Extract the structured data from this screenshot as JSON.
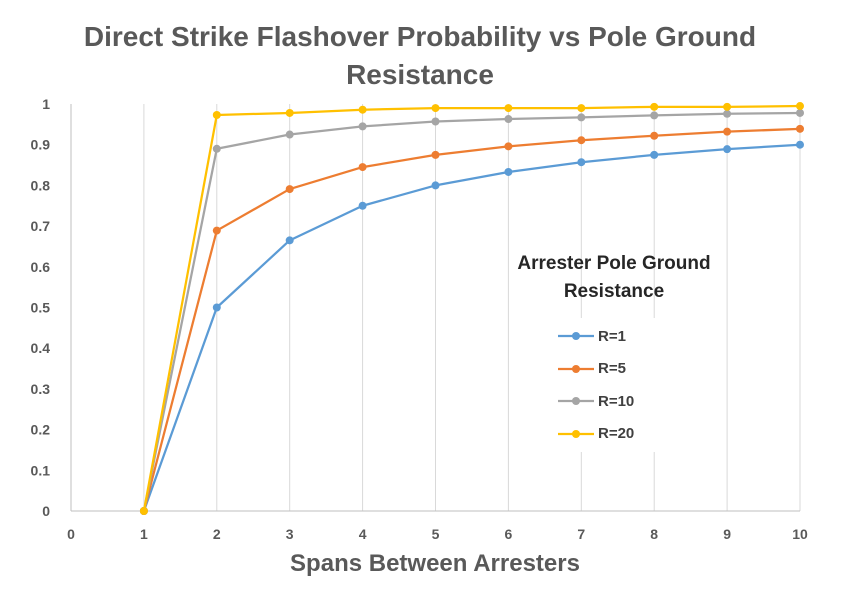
{
  "chart_data": {
    "type": "line",
    "title": "Direct Strike Flashover Probability vs Pole Ground Resistance",
    "xlabel": "Spans Between Arresters",
    "ylabel": "",
    "xlim": [
      0,
      10
    ],
    "ylim": [
      0,
      1
    ],
    "x_ticks": [
      "0",
      "1",
      "2",
      "3",
      "4",
      "5",
      "6",
      "7",
      "8",
      "9",
      "10"
    ],
    "y_ticks": [
      "0",
      "0.1",
      "0.2",
      "0.3",
      "0.4",
      "0.5",
      "0.6",
      "0.7",
      "0.8",
      "0.9",
      "1"
    ],
    "grid": "vertical",
    "legend": {
      "title": "Arrester Pole Ground Resistance",
      "position": "right-center"
    },
    "x": [
      1,
      2,
      3,
      4,
      5,
      6,
      7,
      8,
      9,
      10
    ],
    "series": [
      {
        "name": "R=1",
        "color": "#5B9BD5",
        "values": [
          0,
          0.5,
          0.665,
          0.75,
          0.8,
          0.833,
          0.857,
          0.875,
          0.889,
          0.9
        ]
      },
      {
        "name": "R=5",
        "color": "#ED7D31",
        "values": [
          0,
          0.689,
          0.791,
          0.845,
          0.875,
          0.896,
          0.911,
          0.922,
          0.932,
          0.939
        ]
      },
      {
        "name": "R=10",
        "color": "#A5A5A5",
        "values": [
          0,
          0.89,
          0.925,
          0.945,
          0.957,
          0.963,
          0.967,
          0.972,
          0.976,
          0.978
        ]
      },
      {
        "name": "R=20",
        "color": "#FFC000",
        "values": [
          0,
          0.973,
          0.978,
          0.986,
          0.99,
          0.99,
          0.99,
          0.993,
          0.993,
          0.995
        ]
      }
    ]
  }
}
